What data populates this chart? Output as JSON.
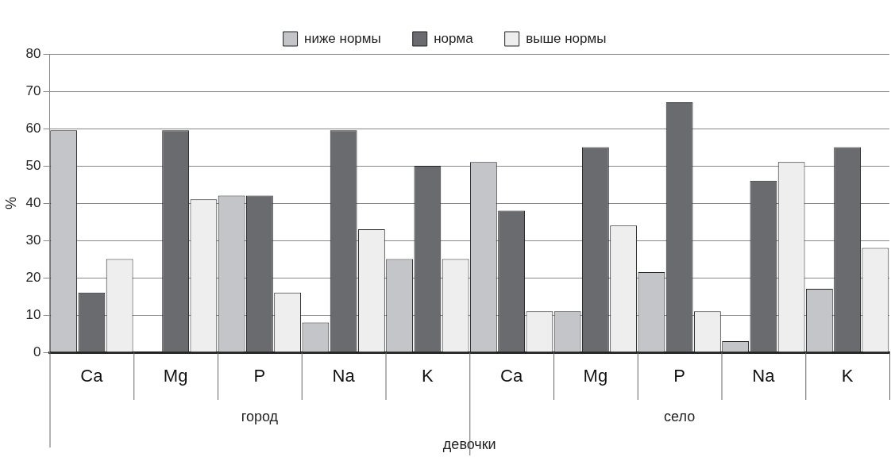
{
  "chart_data": {
    "type": "bar",
    "ylabel": "%",
    "xlabel": "девочки",
    "categories": [
      "Ca",
      "Mg",
      "P",
      "Na",
      "K",
      "Ca",
      "Mg",
      "P",
      "Na",
      "K"
    ],
    "series": [
      {
        "name": "ниже нормы",
        "color": "#c4c5c8",
        "values": [
          59.5,
          0,
          42,
          8,
          25,
          51,
          11,
          21.5,
          3,
          17
        ]
      },
      {
        "name": "норма",
        "color": "#6a6b6f",
        "values": [
          16,
          59.5,
          42,
          59.5,
          50,
          38,
          55,
          67,
          46,
          55
        ]
      },
      {
        "name": "выше нормы",
        "color": "#eeeeee",
        "values": [
          25,
          41,
          16,
          33,
          25,
          11,
          34,
          11,
          51,
          28
        ]
      }
    ],
    "annotations": [
      "город",
      "село"
    ],
    "ylim": [
      0,
      80
    ],
    "yticks": [
      0,
      10,
      20,
      30,
      40,
      50,
      60,
      70,
      80
    ],
    "grid": "y",
    "legend": "top"
  }
}
